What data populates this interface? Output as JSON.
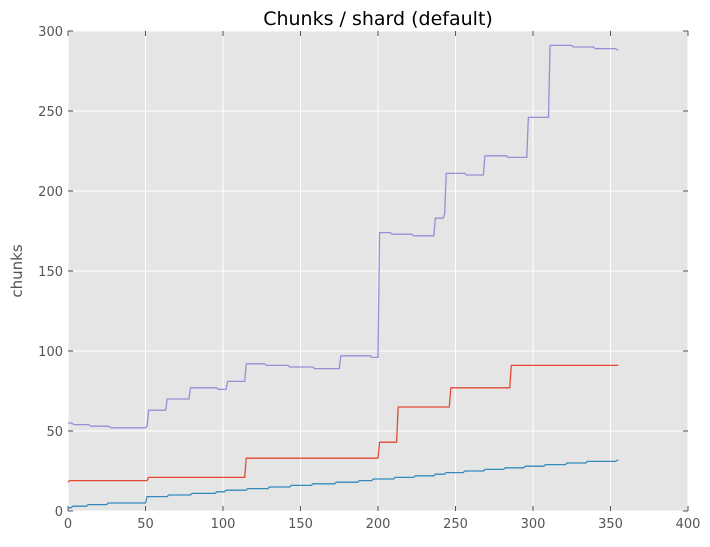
{
  "chart_data": {
    "type": "line",
    "title": "Chunks / shard (default)",
    "xlabel": "",
    "ylabel": "chunks",
    "xlim": [
      0,
      400
    ],
    "ylim": [
      0,
      300
    ],
    "xticks": [
      0,
      50,
      100,
      150,
      200,
      250,
      300,
      350,
      400
    ],
    "yticks": [
      0,
      50,
      100,
      150,
      200,
      250,
      300
    ],
    "grid": true,
    "series": [
      {
        "color": "#988ed5",
        "points": [
          [
            0,
            55
          ],
          [
            2,
            55
          ],
          [
            4,
            54
          ],
          [
            13,
            54
          ],
          [
            15,
            53
          ],
          [
            26,
            53
          ],
          [
            28,
            52
          ],
          [
            50,
            52
          ],
          [
            51,
            53
          ],
          [
            52,
            63
          ],
          [
            63,
            63
          ],
          [
            64,
            70
          ],
          [
            78,
            70
          ],
          [
            79,
            77
          ],
          [
            96,
            77
          ],
          [
            97,
            76
          ],
          [
            102,
            76
          ],
          [
            103,
            81
          ],
          [
            114,
            81
          ],
          [
            115,
            92
          ],
          [
            127,
            92
          ],
          [
            128,
            91
          ],
          [
            142,
            91
          ],
          [
            143,
            90
          ],
          [
            158,
            90
          ],
          [
            159,
            89
          ],
          [
            175,
            89
          ],
          [
            176,
            97
          ],
          [
            195,
            97
          ],
          [
            196,
            96
          ],
          [
            200,
            96
          ],
          [
            201,
            174
          ],
          [
            208,
            174
          ],
          [
            209,
            173
          ],
          [
            222,
            173
          ],
          [
            223,
            172
          ],
          [
            236,
            172
          ],
          [
            237,
            183
          ],
          [
            242,
            183
          ],
          [
            243,
            186
          ],
          [
            244,
            211
          ],
          [
            256,
            211
          ],
          [
            257,
            210
          ],
          [
            268,
            210
          ],
          [
            269,
            222
          ],
          [
            283,
            222
          ],
          [
            284,
            221
          ],
          [
            296,
            221
          ],
          [
            297,
            246
          ],
          [
            310,
            246
          ],
          [
            311,
            291
          ],
          [
            325,
            291
          ],
          [
            326,
            290
          ],
          [
            339,
            290
          ],
          [
            340,
            289
          ],
          [
            353,
            289
          ],
          [
            355,
            288
          ]
        ]
      },
      {
        "color": "#e24a33",
        "points": [
          [
            0,
            18
          ],
          [
            1,
            19
          ],
          [
            51,
            19
          ],
          [
            52,
            21
          ],
          [
            114,
            21
          ],
          [
            115,
            33
          ],
          [
            200,
            33
          ],
          [
            201,
            43
          ],
          [
            212,
            43
          ],
          [
            213,
            65
          ],
          [
            246,
            65
          ],
          [
            247,
            77
          ],
          [
            285,
            77
          ],
          [
            286,
            91
          ],
          [
            355,
            91
          ]
        ]
      },
      {
        "color": "#348abd",
        "points": [
          [
            0,
            2
          ],
          [
            2,
            2
          ],
          [
            3,
            3
          ],
          [
            12,
            3
          ],
          [
            13,
            4
          ],
          [
            25,
            4
          ],
          [
            26,
            5
          ],
          [
            50,
            5
          ],
          [
            51,
            9
          ],
          [
            64,
            9
          ],
          [
            65,
            10
          ],
          [
            79,
            10
          ],
          [
            80,
            11
          ],
          [
            95,
            11
          ],
          [
            96,
            12
          ],
          [
            101,
            12
          ],
          [
            102,
            13
          ],
          [
            115,
            13
          ],
          [
            116,
            14
          ],
          [
            129,
            14
          ],
          [
            130,
            15
          ],
          [
            143,
            15
          ],
          [
            144,
            16
          ],
          [
            157,
            16
          ],
          [
            158,
            17
          ],
          [
            172,
            17
          ],
          [
            173,
            18
          ],
          [
            187,
            18
          ],
          [
            188,
            19
          ],
          [
            196,
            19
          ],
          [
            197,
            20
          ],
          [
            210,
            20
          ],
          [
            211,
            21
          ],
          [
            223,
            21
          ],
          [
            224,
            22
          ],
          [
            236,
            22
          ],
          [
            237,
            23
          ],
          [
            243,
            23
          ],
          [
            244,
            24
          ],
          [
            255,
            24
          ],
          [
            256,
            25
          ],
          [
            268,
            25
          ],
          [
            269,
            26
          ],
          [
            281,
            26
          ],
          [
            282,
            27
          ],
          [
            294,
            27
          ],
          [
            295,
            28
          ],
          [
            307,
            28
          ],
          [
            308,
            29
          ],
          [
            321,
            29
          ],
          [
            322,
            30
          ],
          [
            334,
            30
          ],
          [
            335,
            31
          ],
          [
            353,
            31
          ],
          [
            355,
            32
          ]
        ]
      }
    ]
  }
}
